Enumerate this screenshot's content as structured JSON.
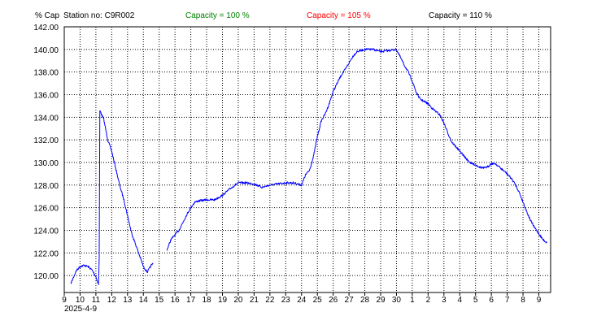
{
  "header": {
    "y_unit": "% Cap",
    "station": "Station no: C9R002",
    "capacity_labels": [
      {
        "text": "Capacity = 100 %",
        "color": "#008000"
      },
      {
        "text": "Capacity = 105 %",
        "color": "#ff0000"
      },
      {
        "text": "Capacity = 110 %",
        "color": "#000000"
      }
    ]
  },
  "chart_data": {
    "type": "line",
    "title": "",
    "xlabel": "",
    "ylabel": "% Cap",
    "start_date": "2025-4-9",
    "x_tick_labels": [
      "9",
      "10",
      "11",
      "12",
      "13",
      "14",
      "15",
      "16",
      "17",
      "18",
      "19",
      "20",
      "21",
      "22",
      "23",
      "24",
      "25",
      "26",
      "27",
      "28",
      "29",
      "30",
      "1",
      "2",
      "3",
      "4",
      "5",
      "6",
      "7",
      "8",
      "9"
    ],
    "ylim": [
      118.5,
      142
    ],
    "y_ticks": [
      120,
      122,
      124,
      126,
      128,
      130,
      132,
      134,
      136,
      138,
      140,
      142
    ],
    "y_tick_labels": [
      "120.00",
      "122.00",
      "124.00",
      "126.00",
      "128.00",
      "130.00",
      "132.00",
      "134.00",
      "136.00",
      "138.00",
      "140.00",
      "142.00"
    ],
    "grid": true,
    "series": [
      {
        "color": "#0000ff",
        "segments": [
          [
            [
              "2025-04-09 10:00",
              119.3
            ],
            [
              "2025-04-09 18:00",
              120.4
            ],
            [
              "2025-04-10 00:00",
              120.8
            ],
            [
              "2025-04-10 06:00",
              120.9
            ],
            [
              "2025-04-10 12:00",
              120.8
            ],
            [
              "2025-04-10 18:00",
              120.5
            ],
            [
              "2025-04-11 00:00",
              119.9
            ],
            [
              "2025-04-11 04:00",
              119.2
            ],
            [
              "2025-04-11 05:00",
              121.5
            ],
            [
              "2025-04-11 06:00",
              134.6
            ],
            [
              "2025-04-11 12:00",
              133.8
            ],
            [
              "2025-04-11 18:00",
              132.0
            ],
            [
              "2025-04-12 00:00",
              131.0
            ],
            [
              "2025-04-12 06:00",
              129.5
            ],
            [
              "2025-04-12 12:00",
              128.0
            ],
            [
              "2025-04-12 18:00",
              126.8
            ],
            [
              "2025-04-13 00:00",
              125.3
            ],
            [
              "2025-04-13 06:00",
              123.8
            ],
            [
              "2025-04-13 12:00",
              122.8
            ],
            [
              "2025-04-13 18:00",
              121.8
            ],
            [
              "2025-04-14 00:00",
              120.8
            ],
            [
              "2025-04-14 06:00",
              120.3
            ],
            [
              "2025-04-14 12:00",
              120.9
            ],
            [
              "2025-04-14 15:00",
              121.1
            ]
          ],
          [
            [
              "2025-04-15 12:00",
              122.3
            ],
            [
              "2025-04-15 18:00",
              123.2
            ],
            [
              "2025-04-16 00:00",
              123.6
            ],
            [
              "2025-04-16 06:00",
              124.0
            ],
            [
              "2025-04-16 12:00",
              124.7
            ],
            [
              "2025-04-16 18:00",
              125.4
            ],
            [
              "2025-04-17 00:00",
              126.0
            ],
            [
              "2025-04-17 06:00",
              126.5
            ],
            [
              "2025-04-17 12:00",
              126.6
            ],
            [
              "2025-04-18 00:00",
              126.7
            ],
            [
              "2025-04-18 12:00",
              126.7
            ],
            [
              "2025-04-19 00:00",
              127.1
            ],
            [
              "2025-04-19 12:00",
              127.7
            ],
            [
              "2025-04-20 00:00",
              128.2
            ],
            [
              "2025-04-20 12:00",
              128.2
            ],
            [
              "2025-04-21 00:00",
              128.1
            ],
            [
              "2025-04-21 12:00",
              127.8
            ],
            [
              "2025-04-22 00:00",
              128.0
            ],
            [
              "2025-04-22 12:00",
              128.1
            ],
            [
              "2025-04-23 00:00",
              128.2
            ],
            [
              "2025-04-23 12:00",
              128.2
            ],
            [
              "2025-04-24 00:00",
              128.0
            ],
            [
              "2025-04-24 06:00",
              128.9
            ],
            [
              "2025-04-24 12:00",
              129.3
            ],
            [
              "2025-04-24 18:00",
              130.5
            ],
            [
              "2025-04-25 00:00",
              132.3
            ],
            [
              "2025-04-25 06:00",
              133.7
            ],
            [
              "2025-04-25 12:00",
              134.3
            ],
            [
              "2025-04-25 18:00",
              135.2
            ],
            [
              "2025-04-26 00:00",
              136.3
            ],
            [
              "2025-04-26 06:00",
              137.0
            ],
            [
              "2025-04-26 12:00",
              137.7
            ],
            [
              "2025-04-26 18:00",
              138.2
            ],
            [
              "2025-04-27 00:00",
              138.8
            ],
            [
              "2025-04-27 06:00",
              139.4
            ],
            [
              "2025-04-27 12:00",
              139.8
            ],
            [
              "2025-04-28 00:00",
              140.0
            ],
            [
              "2025-04-28 12:00",
              140.0
            ],
            [
              "2025-04-29 00:00",
              139.8
            ],
            [
              "2025-04-29 12:00",
              139.9
            ],
            [
              "2025-04-30 00:00",
              140.0
            ],
            [
              "2025-04-30 06:00",
              139.3
            ],
            [
              "2025-04-30 12:00",
              138.6
            ],
            [
              "2025-04-30 18:00",
              138.0
            ],
            [
              "2025-05-01 00:00",
              137.2
            ],
            [
              "2025-05-01 06:00",
              136.2
            ],
            [
              "2025-05-01 12:00",
              135.6
            ],
            [
              "2025-05-01 18:00",
              135.4
            ],
            [
              "2025-05-02 00:00",
              135.2
            ],
            [
              "2025-05-02 06:00",
              134.8
            ],
            [
              "2025-05-02 12:00",
              134.5
            ],
            [
              "2025-05-02 18:00",
              134.2
            ],
            [
              "2025-05-03 00:00",
              133.5
            ],
            [
              "2025-05-03 06:00",
              132.6
            ],
            [
              "2025-05-03 12:00",
              131.8
            ],
            [
              "2025-05-03 18:00",
              131.4
            ],
            [
              "2025-05-04 00:00",
              131.0
            ],
            [
              "2025-05-04 06:00",
              130.6
            ],
            [
              "2025-05-04 12:00",
              130.2
            ],
            [
              "2025-05-04 18:00",
              129.9
            ],
            [
              "2025-05-05 00:00",
              129.8
            ],
            [
              "2025-05-05 06:00",
              129.6
            ],
            [
              "2025-05-05 12:00",
              129.5
            ],
            [
              "2025-05-05 18:00",
              129.6
            ],
            [
              "2025-05-06 00:00",
              129.9
            ],
            [
              "2025-05-06 06:00",
              129.9
            ],
            [
              "2025-05-06 12:00",
              129.6
            ],
            [
              "2025-05-06 18:00",
              129.3
            ],
            [
              "2025-05-07 00:00",
              129.0
            ],
            [
              "2025-05-07 06:00",
              128.6
            ],
            [
              "2025-05-07 12:00",
              128.1
            ],
            [
              "2025-05-07 18:00",
              127.4
            ],
            [
              "2025-05-08 00:00",
              126.5
            ],
            [
              "2025-05-08 06:00",
              125.6
            ],
            [
              "2025-05-08 12:00",
              124.8
            ],
            [
              "2025-05-08 18:00",
              124.2
            ],
            [
              "2025-05-09 00:00",
              123.7
            ],
            [
              "2025-05-09 06:00",
              123.2
            ],
            [
              "2025-05-09 12:00",
              122.9
            ]
          ]
        ]
      }
    ]
  }
}
